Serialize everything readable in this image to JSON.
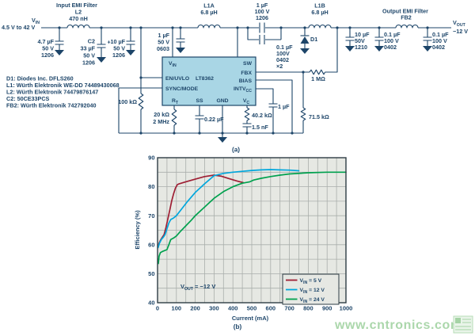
{
  "figure": {
    "caption_a": "(a)",
    "caption_b": "(b)"
  },
  "schematic": {
    "input_filter_title": "Input EMI Filter",
    "l2": {
      "ref": "L2",
      "value": "470 nH"
    },
    "vin": {
      "main": "V",
      "sub": "IN",
      "range": "4.5 V to 42 V"
    },
    "cap_in1": [
      "4.7 µF",
      "50 V",
      "1206"
    ],
    "c2": {
      "ref": "C2",
      "plus": "+",
      "rows": [
        "33 µF",
        "50 V",
        "1206"
      ]
    },
    "cap_in2": [
      "10 µF",
      "50 V",
      "1206"
    ],
    "cap_vin": [
      "1 µF",
      "50 V",
      "0603"
    ],
    "l1a": {
      "ref": "L1A",
      "value": "6.8 µH"
    },
    "cap_fly_top": [
      "1 µF",
      "100 V",
      "1206"
    ],
    "cap_fly_bot": [
      "0.1 µF",
      "100V",
      "0402",
      "×2"
    ],
    "d1_ref": "D1",
    "l1b": {
      "ref": "L1B",
      "value": "6.8 µH"
    },
    "output_filter_title": "Output EMI Filter",
    "fb2_ref": "FB2",
    "cap_out1": [
      "10 µF",
      "50V",
      "1210"
    ],
    "cap_out2": [
      "0.1 µF",
      "100 V",
      "0402"
    ],
    "cap_out3": [
      "0.1 µF",
      "100 V",
      "0402"
    ],
    "vout": {
      "main": "V",
      "sub": "OUT",
      "value": "−12 V"
    },
    "r_en": "100 kΩ",
    "rt": {
      "r": "20 kΩ",
      "f": "2 MHz"
    },
    "c_ss": "0.22 µF",
    "vc": {
      "r": "40.2 kΩ",
      "c": "1.5 nF"
    },
    "c_intvcc": "1 µF",
    "r_fb_series": "1 MΩ",
    "r_fb_gnd": "71.5 kΩ",
    "chip": {
      "name": "LT8362",
      "vin_main": "V",
      "vin_sub": "IN",
      "en": "EN/UVLO",
      "sync": "SYNC/MODE",
      "sw": "SW",
      "fbx": "FBX",
      "bias": "BIAS",
      "intv_main": "INTV",
      "intv_sub": "CC",
      "rt_main": "R",
      "rt_sub": "T",
      "ss": "SS",
      "gnd": "GND",
      "vc_main": "V",
      "vc_sub": "C"
    },
    "notes": [
      "D1: Diodes Inc. DFLS260",
      "L1: Würth Elektronik WE-DD 74489430068",
      "L2: Würth Elektronik 74479876147",
      "C2: 50CE33PCS",
      "FB2: Würth Elektronik 742792040"
    ]
  },
  "chart_data": {
    "type": "line",
    "title": "",
    "xlabel": "Current (mA)",
    "ylabel": "Efficiency (%)",
    "xlim": [
      0,
      1000
    ],
    "ylim": [
      40,
      90
    ],
    "x_ticks": [
      0,
      100,
      200,
      300,
      400,
      500,
      600,
      700,
      800,
      900,
      1000
    ],
    "y_ticks": [
      40,
      50,
      60,
      70,
      80,
      90
    ],
    "x_minor": 50,
    "y_minor": 5,
    "grid": true,
    "legend_position": "lower right",
    "plot_bg": "#e6e8e3",
    "grid_color": "#a9aeab",
    "frame_color": "#2e3d44",
    "annotation": {
      "main": "V",
      "sub": "OUT",
      "rest": " = −12 V"
    },
    "series": [
      {
        "label_main": "V",
        "label_sub": "IN",
        "label_rest": " = 5 V",
        "color": "#9e1f34",
        "points": [
          [
            3,
            59.5
          ],
          [
            8,
            60.5
          ],
          [
            15,
            61.5
          ],
          [
            25,
            62.5
          ],
          [
            35,
            63.5
          ],
          [
            45,
            66
          ],
          [
            55,
            69
          ],
          [
            65,
            72
          ],
          [
            75,
            75
          ],
          [
            85,
            77.5
          ],
          [
            95,
            79.5
          ],
          [
            105,
            80.7
          ],
          [
            115,
            81
          ],
          [
            150,
            81.7
          ],
          [
            200,
            82.6
          ],
          [
            250,
            83.5
          ],
          [
            300,
            84
          ],
          [
            340,
            83.6
          ],
          [
            380,
            82.8
          ],
          [
            420,
            82
          ],
          [
            455,
            81.4
          ]
        ]
      },
      {
        "label_main": "V",
        "label_sub": "IN",
        "label_rest": " = 12 V",
        "color": "#00a7dd",
        "points": [
          [
            3,
            59
          ],
          [
            10,
            60.5
          ],
          [
            20,
            61.8
          ],
          [
            30,
            62.5
          ],
          [
            40,
            63.5
          ],
          [
            50,
            65.5
          ],
          [
            60,
            67.5
          ],
          [
            70,
            68.7
          ],
          [
            85,
            69.2
          ],
          [
            100,
            70
          ],
          [
            130,
            72.5
          ],
          [
            160,
            75
          ],
          [
            200,
            78
          ],
          [
            250,
            81
          ],
          [
            300,
            83.8
          ],
          [
            350,
            84.6
          ],
          [
            400,
            85
          ],
          [
            450,
            85.3
          ],
          [
            500,
            85.6
          ],
          [
            550,
            85.8
          ],
          [
            600,
            85.9
          ],
          [
            650,
            85.8
          ],
          [
            700,
            85.7
          ],
          [
            750,
            85.5
          ]
        ]
      },
      {
        "label_main": "V",
        "label_sub": "IN",
        "label_rest": " = 24 V",
        "color": "#00a14e",
        "points": [
          [
            2,
            55
          ],
          [
            4,
            53.5
          ],
          [
            8,
            56
          ],
          [
            15,
            57.3
          ],
          [
            30,
            57.8
          ],
          [
            50,
            58.3
          ],
          [
            60,
            60
          ],
          [
            70,
            61.8
          ],
          [
            85,
            62.3
          ],
          [
            100,
            63
          ],
          [
            120,
            64.5
          ],
          [
            150,
            66.5
          ],
          [
            180,
            68.5
          ],
          [
            200,
            70
          ],
          [
            250,
            73
          ],
          [
            300,
            76
          ],
          [
            350,
            78.3
          ],
          [
            400,
            80
          ],
          [
            450,
            81.2
          ],
          [
            490,
            81.7
          ],
          [
            510,
            82.3
          ],
          [
            550,
            82.9
          ],
          [
            600,
            83.5
          ],
          [
            650,
            84
          ],
          [
            700,
            84.4
          ],
          [
            800,
            84.8
          ],
          [
            900,
            85
          ],
          [
            1000,
            85
          ]
        ]
      }
    ]
  },
  "watermark": {
    "text": "www.cntronics.com"
  }
}
